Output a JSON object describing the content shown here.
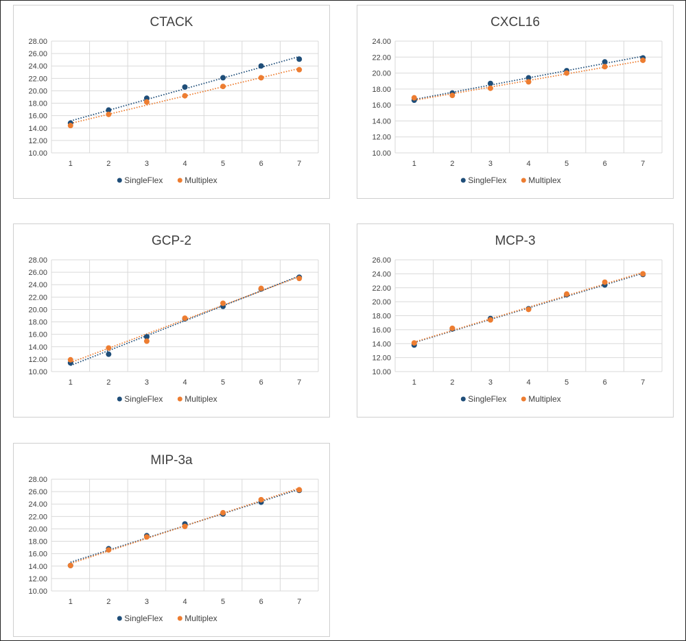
{
  "chart_data": [
    {
      "type": "scatter",
      "title": "CTACK",
      "x": [
        1,
        2,
        3,
        4,
        5,
        6,
        7
      ],
      "ylim": [
        10,
        28
      ],
      "yticks": [
        "10.00",
        "12.00",
        "14.00",
        "16.00",
        "18.00",
        "20.00",
        "22.00",
        "24.00",
        "26.00",
        "28.00"
      ],
      "xticks": [
        "1",
        "2",
        "3",
        "4",
        "5",
        "6",
        "7"
      ],
      "trendline": "linear, dotted",
      "grid": true,
      "legend": "bottom",
      "series": [
        {
          "name": "SingleFlex",
          "color": "#1f4e79",
          "values": [
            14.8,
            16.9,
            18.8,
            20.6,
            22.1,
            24.0,
            25.1
          ]
        },
        {
          "name": "Multiplex",
          "color": "#ed7d31",
          "values": [
            14.4,
            16.2,
            18.2,
            19.2,
            20.7,
            22.1,
            23.4
          ]
        }
      ]
    },
    {
      "type": "scatter",
      "title": "CXCL16",
      "x": [
        1,
        2,
        3,
        4,
        5,
        6,
        7
      ],
      "ylim": [
        10,
        24
      ],
      "yticks": [
        "10.00",
        "12.00",
        "14.00",
        "16.00",
        "18.00",
        "20.00",
        "22.00",
        "24.00"
      ],
      "xticks": [
        "1",
        "2",
        "3",
        "4",
        "5",
        "6",
        "7"
      ],
      "trendline": "linear, dotted",
      "grid": true,
      "legend": "bottom",
      "series": [
        {
          "name": "SingleFlex",
          "color": "#1f4e79",
          "values": [
            16.6,
            17.5,
            18.7,
            19.4,
            20.3,
            21.4,
            21.9
          ]
        },
        {
          "name": "Multiplex",
          "color": "#ed7d31",
          "values": [
            16.9,
            17.2,
            18.1,
            18.9,
            20.0,
            20.8,
            21.6
          ]
        }
      ]
    },
    {
      "type": "scatter",
      "title": "GCP-2",
      "x": [
        1,
        2,
        3,
        4,
        5,
        6,
        7
      ],
      "ylim": [
        10,
        28
      ],
      "yticks": [
        "10.00",
        "12.00",
        "14.00",
        "16.00",
        "18.00",
        "20.00",
        "22.00",
        "24.00",
        "26.00",
        "28.00"
      ],
      "xticks": [
        "1",
        "2",
        "3",
        "4",
        "5",
        "6",
        "7"
      ],
      "trendline": "linear, dotted",
      "grid": true,
      "legend": "bottom",
      "series": [
        {
          "name": "SingleFlex",
          "color": "#1f4e79",
          "values": [
            11.4,
            12.8,
            15.6,
            18.5,
            20.5,
            23.3,
            25.2
          ]
        },
        {
          "name": "Multiplex",
          "color": "#ed7d31",
          "values": [
            11.9,
            13.8,
            14.9,
            18.6,
            21.0,
            23.4,
            25.0
          ]
        }
      ]
    },
    {
      "type": "scatter",
      "title": "MCP-3",
      "x": [
        1,
        2,
        3,
        4,
        5,
        6,
        7
      ],
      "ylim": [
        10,
        26
      ],
      "yticks": [
        "10.00",
        "12.00",
        "14.00",
        "16.00",
        "18.00",
        "20.00",
        "22.00",
        "24.00",
        "26.00"
      ],
      "xticks": [
        "1",
        "2",
        "3",
        "4",
        "5",
        "6",
        "7"
      ],
      "trendline": "linear, dotted",
      "grid": true,
      "legend": "bottom",
      "series": [
        {
          "name": "SingleFlex",
          "color": "#1f4e79",
          "values": [
            13.8,
            16.1,
            17.6,
            19.0,
            21.0,
            22.4,
            23.9
          ]
        },
        {
          "name": "Multiplex",
          "color": "#ed7d31",
          "values": [
            14.1,
            16.2,
            17.4,
            18.9,
            21.1,
            22.8,
            24.0
          ]
        }
      ]
    },
    {
      "type": "scatter",
      "title": "MIP-3a",
      "x": [
        1,
        2,
        3,
        4,
        5,
        6,
        7
      ],
      "ylim": [
        10,
        28
      ],
      "yticks": [
        "10.00",
        "12.00",
        "14.00",
        "16.00",
        "18.00",
        "20.00",
        "22.00",
        "24.00",
        "26.00",
        "28.00"
      ],
      "xticks": [
        "1",
        "2",
        "3",
        "4",
        "5",
        "6",
        "7"
      ],
      "trendline": "linear, dotted",
      "grid": true,
      "legend": "bottom",
      "series": [
        {
          "name": "SingleFlex",
          "color": "#1f4e79",
          "values": [
            14.1,
            16.8,
            18.9,
            20.8,
            22.4,
            24.3,
            26.2
          ]
        },
        {
          "name": "Multiplex",
          "color": "#ed7d31",
          "values": [
            14.1,
            16.6,
            18.7,
            20.4,
            22.6,
            24.7,
            26.3
          ]
        }
      ]
    }
  ]
}
